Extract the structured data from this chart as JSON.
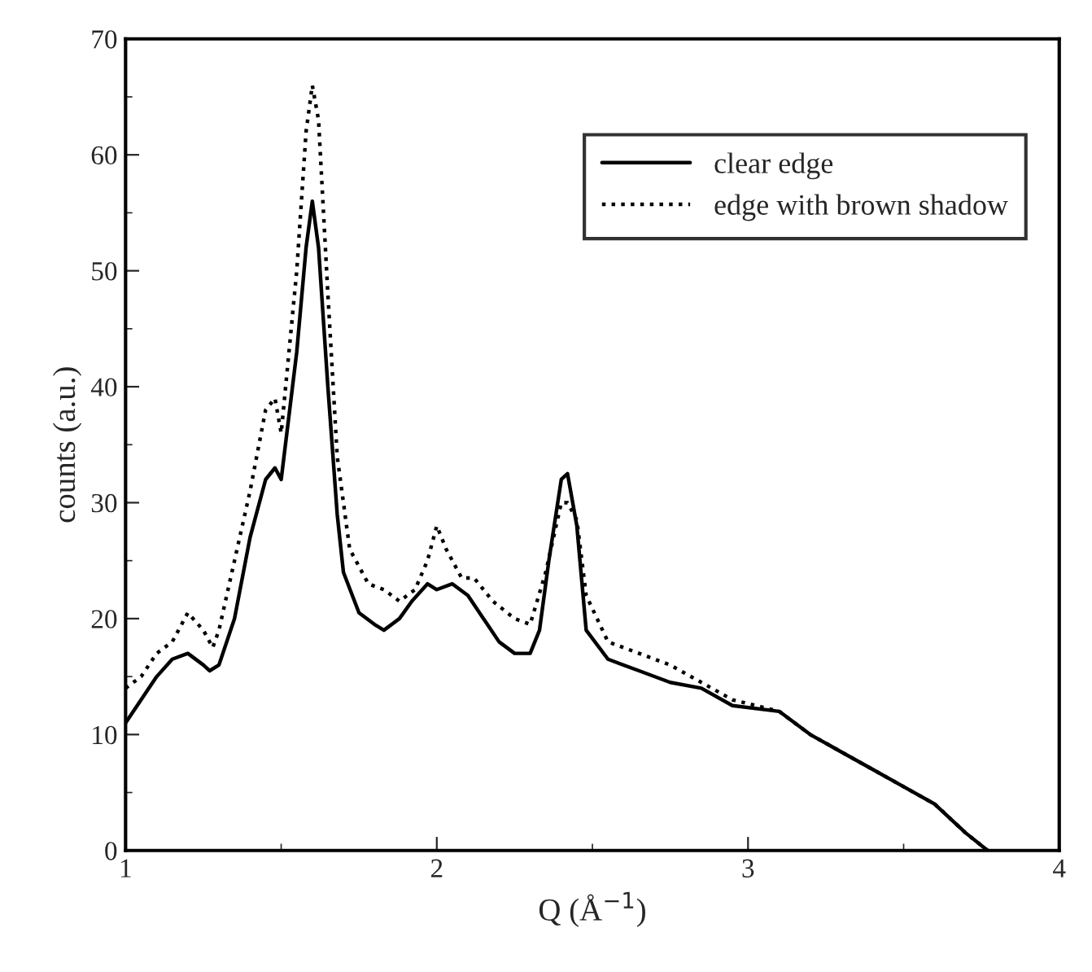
{
  "chart_data": {
    "type": "line",
    "xlabel": "Q (Å$^{−1}$)",
    "ylabel": "counts (a.u.)",
    "xlim": [
      1,
      4
    ],
    "ylim": [
      0,
      70
    ],
    "xticks": [
      1,
      {
        "value": 1.5,
        "label": null
      },
      2,
      {
        "value": 2.5,
        "label": null
      },
      3,
      {
        "value": 3.5,
        "label": null
      },
      4
    ],
    "yticks": [
      0,
      {
        "value": 5,
        "label": null
      },
      10,
      {
        "value": 15,
        "label": null
      },
      20,
      {
        "value": 25,
        "label": null
      },
      30,
      {
        "value": 35,
        "label": null
      },
      40,
      {
        "value": 45,
        "label": null
      },
      50,
      {
        "value": 55,
        "label": null
      },
      60,
      {
        "value": 65,
        "label": null
      },
      70
    ],
    "grid": false,
    "legend": "top right",
    "series": [
      {
        "name": "clear edge",
        "color": "#000000",
        "line_style": "solid",
        "x": [
          1.0,
          1.05,
          1.1,
          1.15,
          1.2,
          1.25,
          1.27,
          1.3,
          1.35,
          1.4,
          1.45,
          1.48,
          1.5,
          1.55,
          1.58,
          1.6,
          1.62,
          1.65,
          1.68,
          1.7,
          1.75,
          1.8,
          1.83,
          1.88,
          1.92,
          1.97,
          2.0,
          2.05,
          2.1,
          2.15,
          2.2,
          2.25,
          2.3,
          2.33,
          2.36,
          2.4,
          2.42,
          2.45,
          2.48,
          2.55,
          2.65,
          2.75,
          2.85,
          2.95,
          3.1,
          3.2,
          3.3,
          3.4,
          3.5,
          3.6,
          3.7,
          3.77
        ],
        "values": [
          11,
          13,
          15,
          16.5,
          17,
          16,
          15.5,
          16,
          20,
          27,
          32,
          33,
          32,
          43,
          52,
          56,
          52,
          40,
          29,
          24,
          20.5,
          19.5,
          19,
          20,
          21.5,
          23,
          22.5,
          23,
          22,
          20,
          18,
          17,
          17,
          19,
          25,
          32,
          32.5,
          28,
          19,
          16.5,
          15.5,
          14.5,
          14,
          12.5,
          12,
          10,
          8.5,
          7,
          5.5,
          4,
          1.5,
          0
        ]
      },
      {
        "name": "edge with brown shadow",
        "color": "#000000",
        "line_style": "dotted",
        "x": [
          1.0,
          1.05,
          1.1,
          1.15,
          1.2,
          1.25,
          1.28,
          1.3,
          1.35,
          1.4,
          1.45,
          1.48,
          1.5,
          1.55,
          1.58,
          1.6,
          1.62,
          1.65,
          1.68,
          1.72,
          1.78,
          1.83,
          1.88,
          1.93,
          1.97,
          2.0,
          2.03,
          2.08,
          2.12,
          2.18,
          2.25,
          2.3,
          2.35,
          2.4,
          2.42,
          2.45,
          2.48,
          2.55,
          2.65,
          2.75,
          2.85,
          2.95,
          3.1,
          3.2,
          3.3,
          3.4,
          3.5,
          3.6,
          3.7,
          3.77
        ],
        "values": [
          14,
          15,
          17,
          18,
          20.5,
          19,
          17.5,
          19,
          25,
          31,
          38,
          39,
          36,
          50,
          62,
          66,
          63,
          48,
          34,
          26,
          23,
          22.5,
          21.5,
          22.5,
          25,
          28,
          26,
          23.5,
          23.5,
          21.5,
          20,
          19.5,
          24,
          30,
          30,
          28.5,
          22,
          18,
          17,
          16,
          14.5,
          13,
          12,
          10,
          8.5,
          7,
          5.5,
          4,
          1.5,
          0
        ]
      }
    ]
  }
}
